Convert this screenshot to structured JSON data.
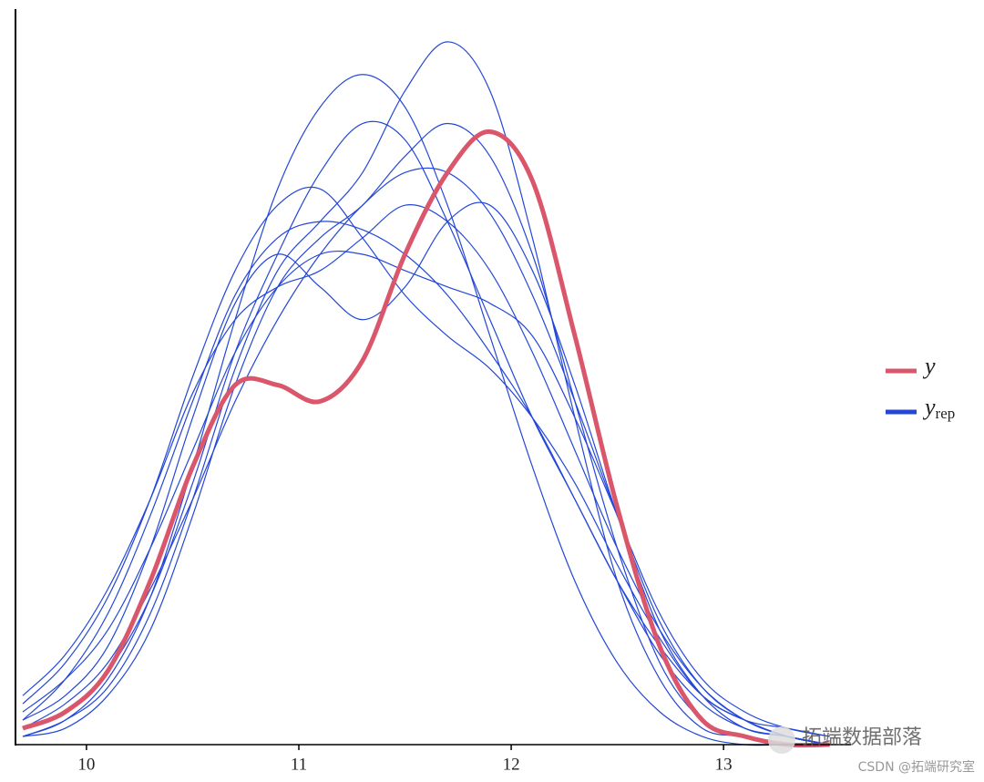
{
  "chart_data": {
    "type": "density",
    "x": [
      9.7,
      9.9,
      10.1,
      10.3,
      10.5,
      10.7,
      10.9,
      11.1,
      11.3,
      11.5,
      11.7,
      11.9,
      12.1,
      12.3,
      12.5,
      12.7,
      12.9,
      13.1,
      13.3,
      13.5
    ],
    "xlim": [
      9.67,
      13.6
    ],
    "xticks": [
      10,
      11,
      12,
      13
    ],
    "ylim": [
      0,
      0.9
    ],
    "observed": {
      "name": "y",
      "color": "#d9566b",
      "values": [
        0.02,
        0.04,
        0.09,
        0.2,
        0.34,
        0.44,
        0.44,
        0.42,
        0.47,
        0.6,
        0.7,
        0.75,
        0.69,
        0.5,
        0.29,
        0.12,
        0.03,
        0.01,
        0,
        0
      ]
    },
    "replicates": {
      "name": "y",
      "subscript": "rep",
      "color": "#2447d8",
      "series": [
        [
          0.03,
          0.08,
          0.16,
          0.28,
          0.42,
          0.55,
          0.62,
          0.64,
          0.63,
          0.6,
          0.55,
          0.48,
          0.4,
          0.3,
          0.2,
          0.11,
          0.05,
          0.02,
          0.01,
          0
        ],
        [
          0.01,
          0.03,
          0.08,
          0.18,
          0.34,
          0.52,
          0.68,
          0.78,
          0.82,
          0.78,
          0.66,
          0.5,
          0.34,
          0.2,
          0.1,
          0.04,
          0.01,
          0,
          0,
          0
        ],
        [
          0.02,
          0.05,
          0.1,
          0.19,
          0.3,
          0.42,
          0.52,
          0.6,
          0.66,
          0.7,
          0.7,
          0.65,
          0.55,
          0.42,
          0.28,
          0.15,
          0.07,
          0.03,
          0.01,
          0
        ],
        [
          0.05,
          0.1,
          0.18,
          0.3,
          0.45,
          0.58,
          0.66,
          0.68,
          0.62,
          0.55,
          0.5,
          0.46,
          0.4,
          0.32,
          0.22,
          0.13,
          0.06,
          0.03,
          0.01,
          0
        ],
        [
          0.01,
          0.02,
          0.06,
          0.14,
          0.28,
          0.44,
          0.56,
          0.62,
          0.66,
          0.72,
          0.76,
          0.72,
          0.6,
          0.42,
          0.24,
          0.1,
          0.03,
          0.01,
          0,
          0
        ],
        [
          0.03,
          0.06,
          0.12,
          0.24,
          0.4,
          0.54,
          0.6,
          0.56,
          0.52,
          0.56,
          0.64,
          0.66,
          0.58,
          0.44,
          0.28,
          0.14,
          0.06,
          0.02,
          0.01,
          0
        ],
        [
          0.02,
          0.04,
          0.09,
          0.18,
          0.32,
          0.48,
          0.6,
          0.7,
          0.76,
          0.74,
          0.64,
          0.52,
          0.4,
          0.3,
          0.2,
          0.12,
          0.06,
          0.03,
          0.02,
          0.01
        ],
        [
          0.04,
          0.08,
          0.14,
          0.24,
          0.36,
          0.48,
          0.56,
          0.6,
          0.6,
          0.58,
          0.56,
          0.54,
          0.5,
          0.4,
          0.28,
          0.16,
          0.08,
          0.04,
          0.02,
          0.01
        ],
        [
          0.01,
          0.03,
          0.07,
          0.16,
          0.3,
          0.46,
          0.58,
          0.64,
          0.7,
          0.8,
          0.86,
          0.8,
          0.62,
          0.4,
          0.2,
          0.08,
          0.02,
          0.01,
          0,
          0
        ],
        [
          0.06,
          0.11,
          0.19,
          0.3,
          0.43,
          0.52,
          0.56,
          0.58,
          0.62,
          0.66,
          0.64,
          0.58,
          0.48,
          0.36,
          0.24,
          0.14,
          0.07,
          0.03,
          0.01,
          0
        ]
      ]
    },
    "legend": "right"
  },
  "watermark": {
    "text": "拓端数据部落",
    "caption": "CSDN @拓端研究室"
  }
}
